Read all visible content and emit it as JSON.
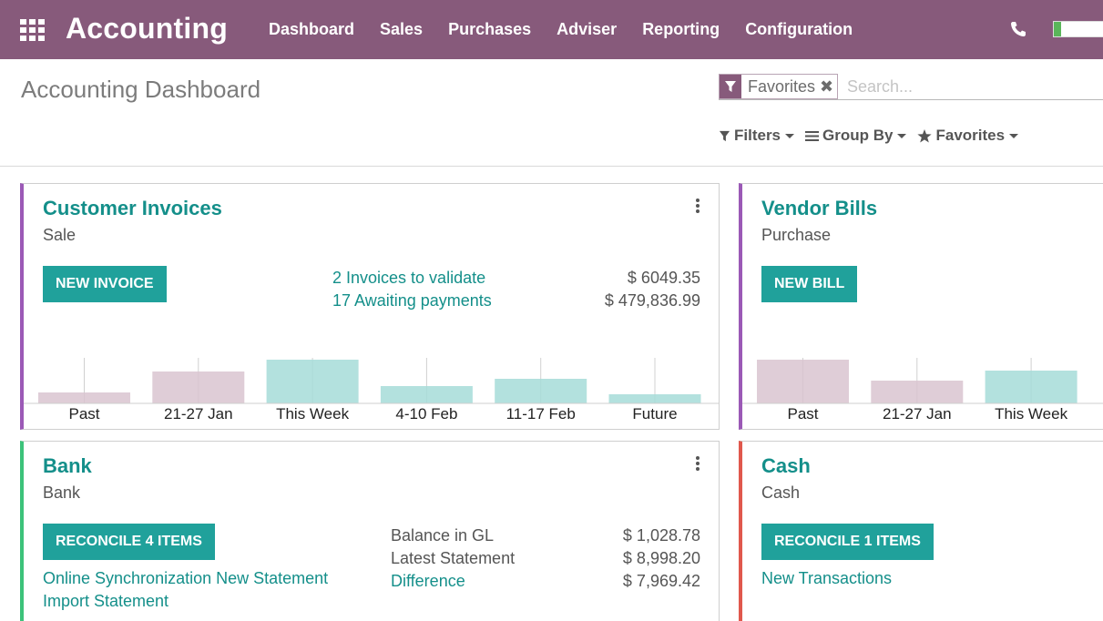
{
  "navbar": {
    "app_title": "Accounting",
    "menu": [
      "Dashboard",
      "Sales",
      "Purchases",
      "Adviser",
      "Reporting",
      "Configuration"
    ],
    "icons": [
      "apps-grid-icon",
      "phone-icon"
    ]
  },
  "control_panel": {
    "title": "Accounting Dashboard",
    "search": {
      "facet_label": "Favorites",
      "facet_icon": "filter-icon",
      "placeholder": "Search..."
    },
    "options": {
      "filters": "Filters",
      "group_by": "Group By",
      "favorites": "Favorites"
    }
  },
  "colors": {
    "brand": "#875a7b",
    "accent": "#20a19b",
    "link": "#148f8a",
    "past_bar": "#d9c4d0",
    "future_bar": "#a6dcd8",
    "sale_border": "#9b59b6",
    "bank_border": "#3cc27a",
    "cash_border": "#e0584d"
  },
  "cards": {
    "customer_invoices": {
      "title": "Customer Invoices",
      "subtitle": "Sale",
      "button": "NEW INVOICE",
      "links": [
        {
          "label": "2 Invoices to validate",
          "amount": "$ 6049.35"
        },
        {
          "label": "17 Awaiting payments",
          "amount": "$ 479,836.99"
        }
      ]
    },
    "vendor_bills": {
      "title": "Vendor Bills",
      "subtitle": "Purchase",
      "button": "NEW BILL"
    },
    "bank": {
      "title": "Bank",
      "subtitle": "Bank",
      "button": "RECONCILE 4 ITEMS",
      "link_sync": "Online Synchronization New Statement",
      "link_import": "Import Statement",
      "rows": [
        {
          "label": "Balance in GL",
          "amount": "$ 1,028.78"
        },
        {
          "label": "Latest Statement",
          "amount": "$ 8,998.20"
        },
        {
          "label": "Difference",
          "amount": "$ 7,969.42"
        }
      ]
    },
    "cash": {
      "title": "Cash",
      "subtitle": "Cash",
      "button": "RECONCILE 1 ITEMS",
      "link": "New Transactions"
    }
  },
  "chart_data": [
    {
      "type": "bar",
      "categories": [
        "Past",
        "21-27 Jan",
        "This Week",
        "4-10 Feb",
        "11-17 Feb",
        "Future"
      ],
      "values": [
        12,
        35,
        48,
        19,
        27,
        10
      ],
      "period": [
        "past",
        "past",
        "future",
        "future",
        "future",
        "future"
      ],
      "ylim": [
        0,
        50
      ]
    },
    {
      "type": "bar",
      "categories": [
        "Past",
        "21-27 Jan",
        "This Week"
      ],
      "values": [
        48,
        25,
        36
      ],
      "period": [
        "past",
        "past",
        "future"
      ],
      "ylim": [
        0,
        50
      ]
    }
  ]
}
